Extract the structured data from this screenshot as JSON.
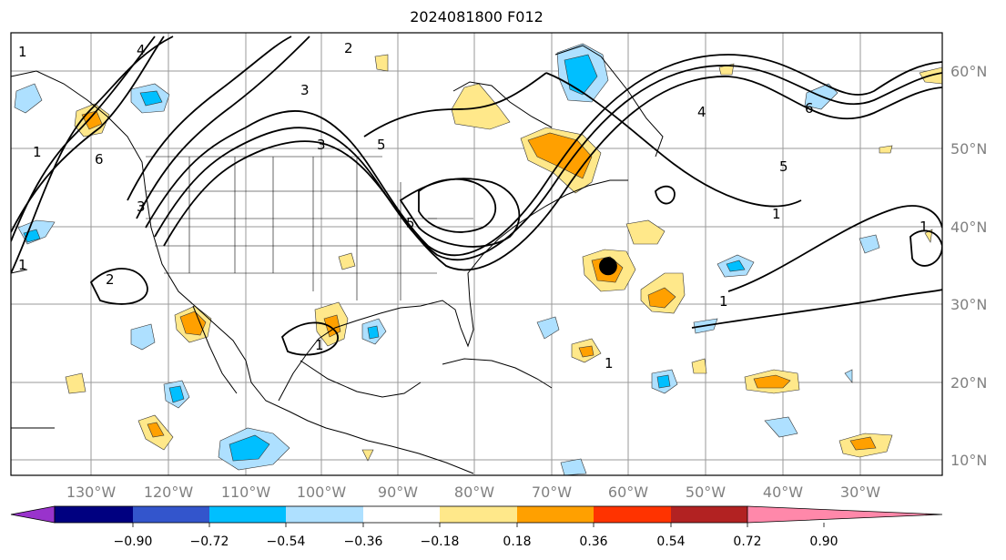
{
  "title": "2024081800 F012",
  "longitude_labels": [
    "130°W",
    "120°W",
    "110°W",
    "100°W",
    "90°W",
    "80°W",
    "70°W",
    "60°W",
    "50°W",
    "40°W",
    "30°W"
  ],
  "latitude_labels": [
    "60°N",
    "50°N",
    "40°N",
    "30°N",
    "20°N",
    "10°N"
  ],
  "contour_labels": [
    "1",
    "2",
    "3",
    "4",
    "5",
    "6"
  ],
  "colorbar": {
    "ticks": [
      "−0.90",
      "−0.72",
      "−0.54",
      "−0.36",
      "−0.18",
      "0.18",
      "0.36",
      "0.54",
      "0.72",
      "0.90"
    ],
    "colors": [
      "#9933cc",
      "#000080",
      "#3355cc",
      "#00bfff",
      "#aee0ff",
      "#ffffff",
      "#ffe88a",
      "#ffa000",
      "#ff3300",
      "#b22222",
      "#ff88aa"
    ]
  },
  "storm_marker": "●"
}
